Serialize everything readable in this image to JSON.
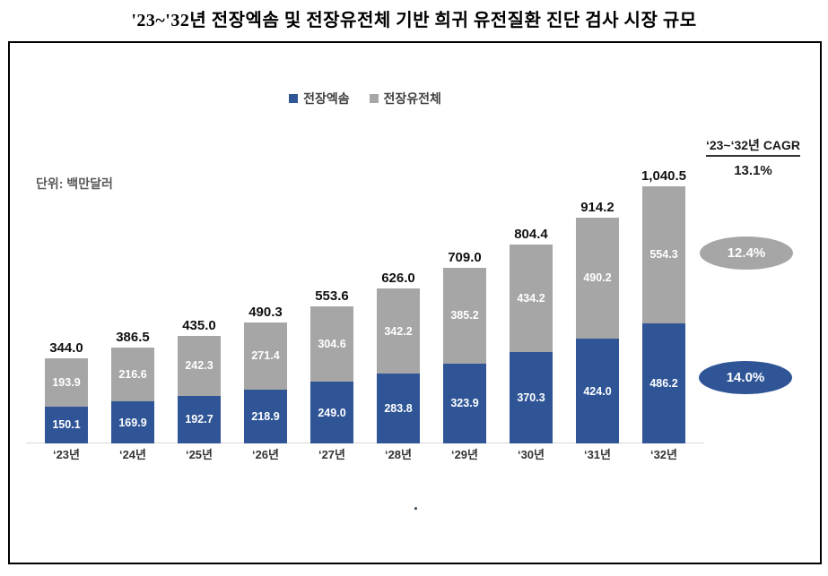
{
  "page_title": "'23~'32년 전장엑솜 및 전장유전체 기반 희귀 유전질환 진단 검사 시장 규모",
  "unit_label": "단위: 백만달러",
  "legend": {
    "series1": "전장엑솜",
    "series2": "전장유전체"
  },
  "cagr": {
    "header": "‘23~‘32년 CAGR",
    "total": "13.1%",
    "gray_oval": "12.4%",
    "blue_oval": "14.0%"
  },
  "colors": {
    "blue": "#2F5597",
    "gray": "#A6A6A6"
  },
  "footnote_dot": ".",
  "chart_data": {
    "type": "bar",
    "stacked": true,
    "title": "'23~'32년 전장엑솜 및 전장유전체 기반 희귀 유전질환 진단 검사 시장 규모",
    "unit": "백만달러",
    "categories": [
      "‘23년",
      "‘24년",
      "‘25년",
      "‘26년",
      "‘27년",
      "‘28년",
      "‘29년",
      "‘30년",
      "‘31년",
      "‘32년"
    ],
    "series": [
      {
        "name": "전장엑솜",
        "color": "#2F5597",
        "values": [
          150.1,
          169.9,
          192.7,
          218.9,
          249.0,
          283.8,
          323.9,
          370.3,
          424.0,
          486.2
        ],
        "labels": [
          "150.1",
          "169.9",
          "192.7",
          "218.9",
          "249.0",
          "283.8",
          "323.9",
          "370.3",
          "424.0",
          "486.2"
        ],
        "cagr": "14.0%"
      },
      {
        "name": "전장유전체",
        "color": "#A6A6A6",
        "values": [
          193.9,
          216.6,
          242.3,
          271.4,
          304.6,
          342.2,
          385.2,
          434.2,
          490.2,
          554.3
        ],
        "labels": [
          "193.9",
          "216.6",
          "242.3",
          "271.4",
          "304.6",
          "342.2",
          "385.2",
          "434.2",
          "490.2",
          "554.3"
        ],
        "cagr": "12.4%"
      }
    ],
    "totals": [
      344.0,
      386.5,
      435.0,
      490.3,
      553.6,
      626.0,
      709.0,
      804.4,
      914.2,
      1040.5
    ],
    "total_labels": [
      "344.0",
      "386.5",
      "435.0",
      "490.3",
      "553.6",
      "626.0",
      "709.0",
      "804.4",
      "914.2",
      "1,040.5"
    ],
    "overall_cagr": "13.1%",
    "ylim": [
      0,
      1100
    ],
    "grid": false,
    "legend_position": "top"
  }
}
